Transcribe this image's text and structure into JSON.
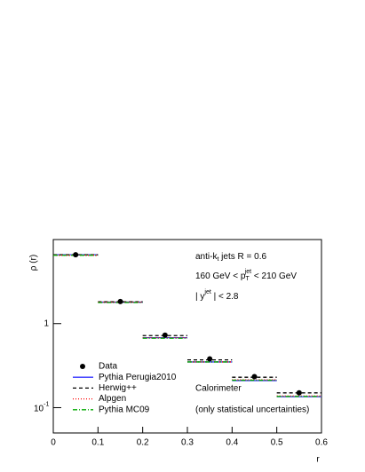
{
  "chart_data": {
    "type": "step",
    "xlabel": "r",
    "ylabel": "ρ (r)",
    "bins": [
      0,
      0.1,
      0.2,
      0.3,
      0.4,
      0.5,
      0.6
    ],
    "x": [
      0.05,
      0.15,
      0.25,
      0.35,
      0.45,
      0.55
    ],
    "data": {
      "name": "Data",
      "color": "#000000",
      "values": [
        6.6,
        1.83,
        0.73,
        0.38,
        0.234,
        0.15
      ]
    },
    "series": [
      {
        "name": "Pythia Perugia2010",
        "color": "#3333ff",
        "dash": "",
        "values": [
          6.6,
          1.8,
          0.68,
          0.35,
          0.21,
          0.135
        ]
      },
      {
        "name": "Herwig++",
        "color": "#000000",
        "dash": "4 3",
        "values": [
          6.6,
          1.82,
          0.72,
          0.37,
          0.23,
          0.15
        ]
      },
      {
        "name": "Alpgen",
        "color": "#ff0000",
        "dash": "1 2",
        "values": [
          6.5,
          1.8,
          0.68,
          0.35,
          0.215,
          0.138
        ]
      },
      {
        "name": "Pythia MC09",
        "color": "#00aa00",
        "dash": "5 2 1 2",
        "values": [
          6.5,
          1.78,
          0.67,
          0.35,
          0.212,
          0.136
        ]
      }
    ],
    "xlim": [
      0,
      0.6
    ],
    "xticks": [
      0,
      0.1,
      0.2,
      0.3,
      0.4,
      0.5,
      0.6
    ],
    "ylim": [
      0.05,
      10
    ],
    "log_y": true,
    "yticks": [
      {
        "value": 0.1,
        "label": "10"
      },
      1
    ],
    "ytick_exponent": "-1",
    "legend": "lower left",
    "annotations": [
      [
        "anti-k",
        "t",
        " jets R = 0.6"
      ],
      [
        "160 GeV < p",
        "T",
        "jet",
        " < 210 GeV"
      ],
      [
        "| y",
        "jet",
        " | < 2.8"
      ],
      [
        "Calorimeter"
      ],
      [
        "(only statistical uncertainties)"
      ]
    ]
  }
}
